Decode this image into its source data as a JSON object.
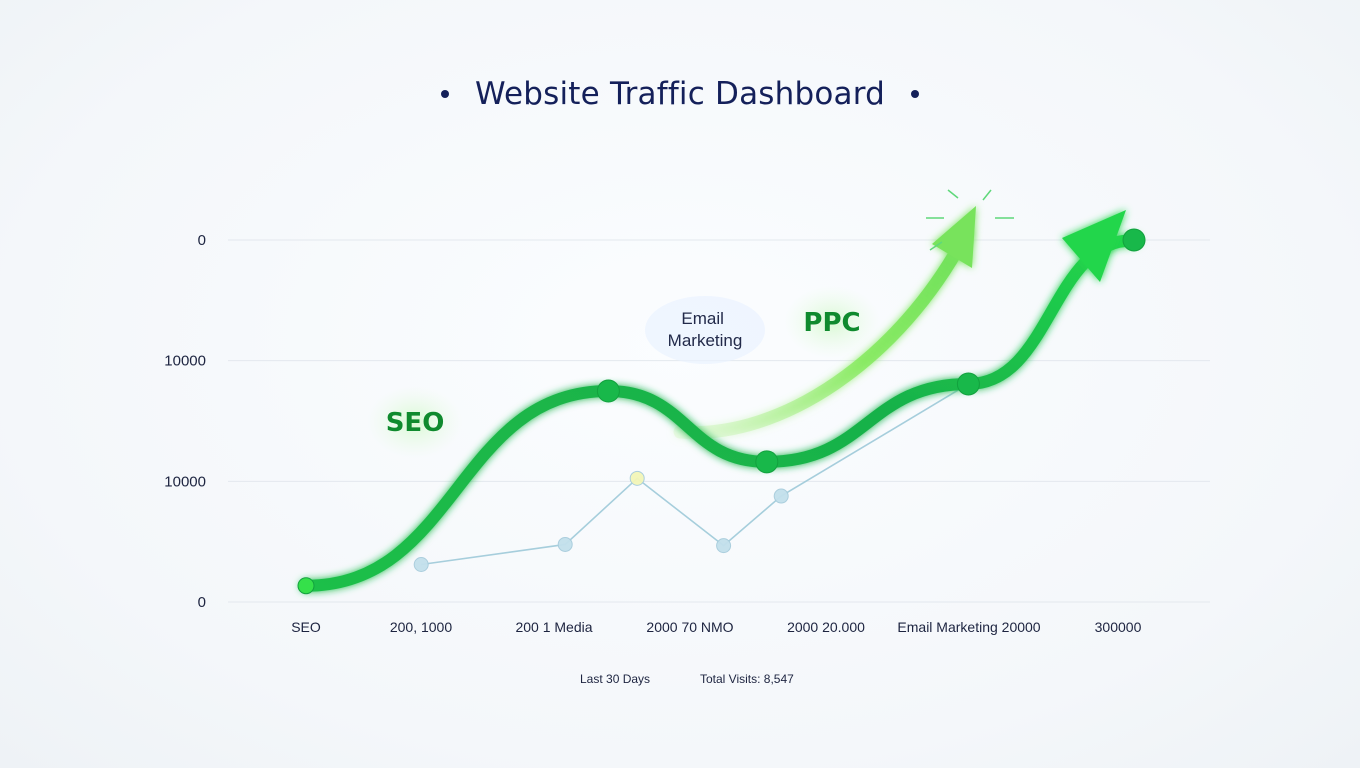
{
  "title": "Website Traffic Dashboard",
  "colors": {
    "primary_line": "#1ec84a",
    "secondary_line": "#9cc9d8",
    "accent_arrow": "#7ee85a",
    "title": "#14205a",
    "grid": "#e3e8ee"
  },
  "chart_data": {
    "type": "line",
    "y_tick_labels": [
      "0",
      "10000",
      "10000",
      "0"
    ],
    "x_tick_labels": [
      "SEO",
      "200, 1000",
      "200 1 Media",
      "2000  70 NMO",
      "2000  20.000",
      "Email Marketing 20000",
      "300000"
    ],
    "series": [
      {
        "name": "",
        "style": "thick green line with arrow",
        "x": [
          0.0,
          2.1,
          3.2,
          4.6,
          5.75
        ],
        "y": [
          0.07,
          1.72,
          1.12,
          1.78,
          3.0
        ]
      },
      {
        "name": "",
        "style": "thin light-blue line",
        "x": [
          0.8,
          1.8,
          2.3,
          2.9,
          3.3,
          4.6
        ],
        "y": [
          0.25,
          0.42,
          0.98,
          0.41,
          0.83,
          1.78
        ]
      }
    ],
    "annotations": [
      {
        "text": "SEO",
        "style": "big-green"
      },
      {
        "text": "PPC",
        "style": "big-green"
      },
      {
        "text": "Email\nMarketing",
        "style": "small-dark"
      }
    ],
    "grid": true,
    "xlim": [
      0,
      6
    ],
    "ylim": [
      0,
      3
    ]
  },
  "footer": {
    "period": "Last 30 Days",
    "total": "Total Visits: 8,547"
  }
}
